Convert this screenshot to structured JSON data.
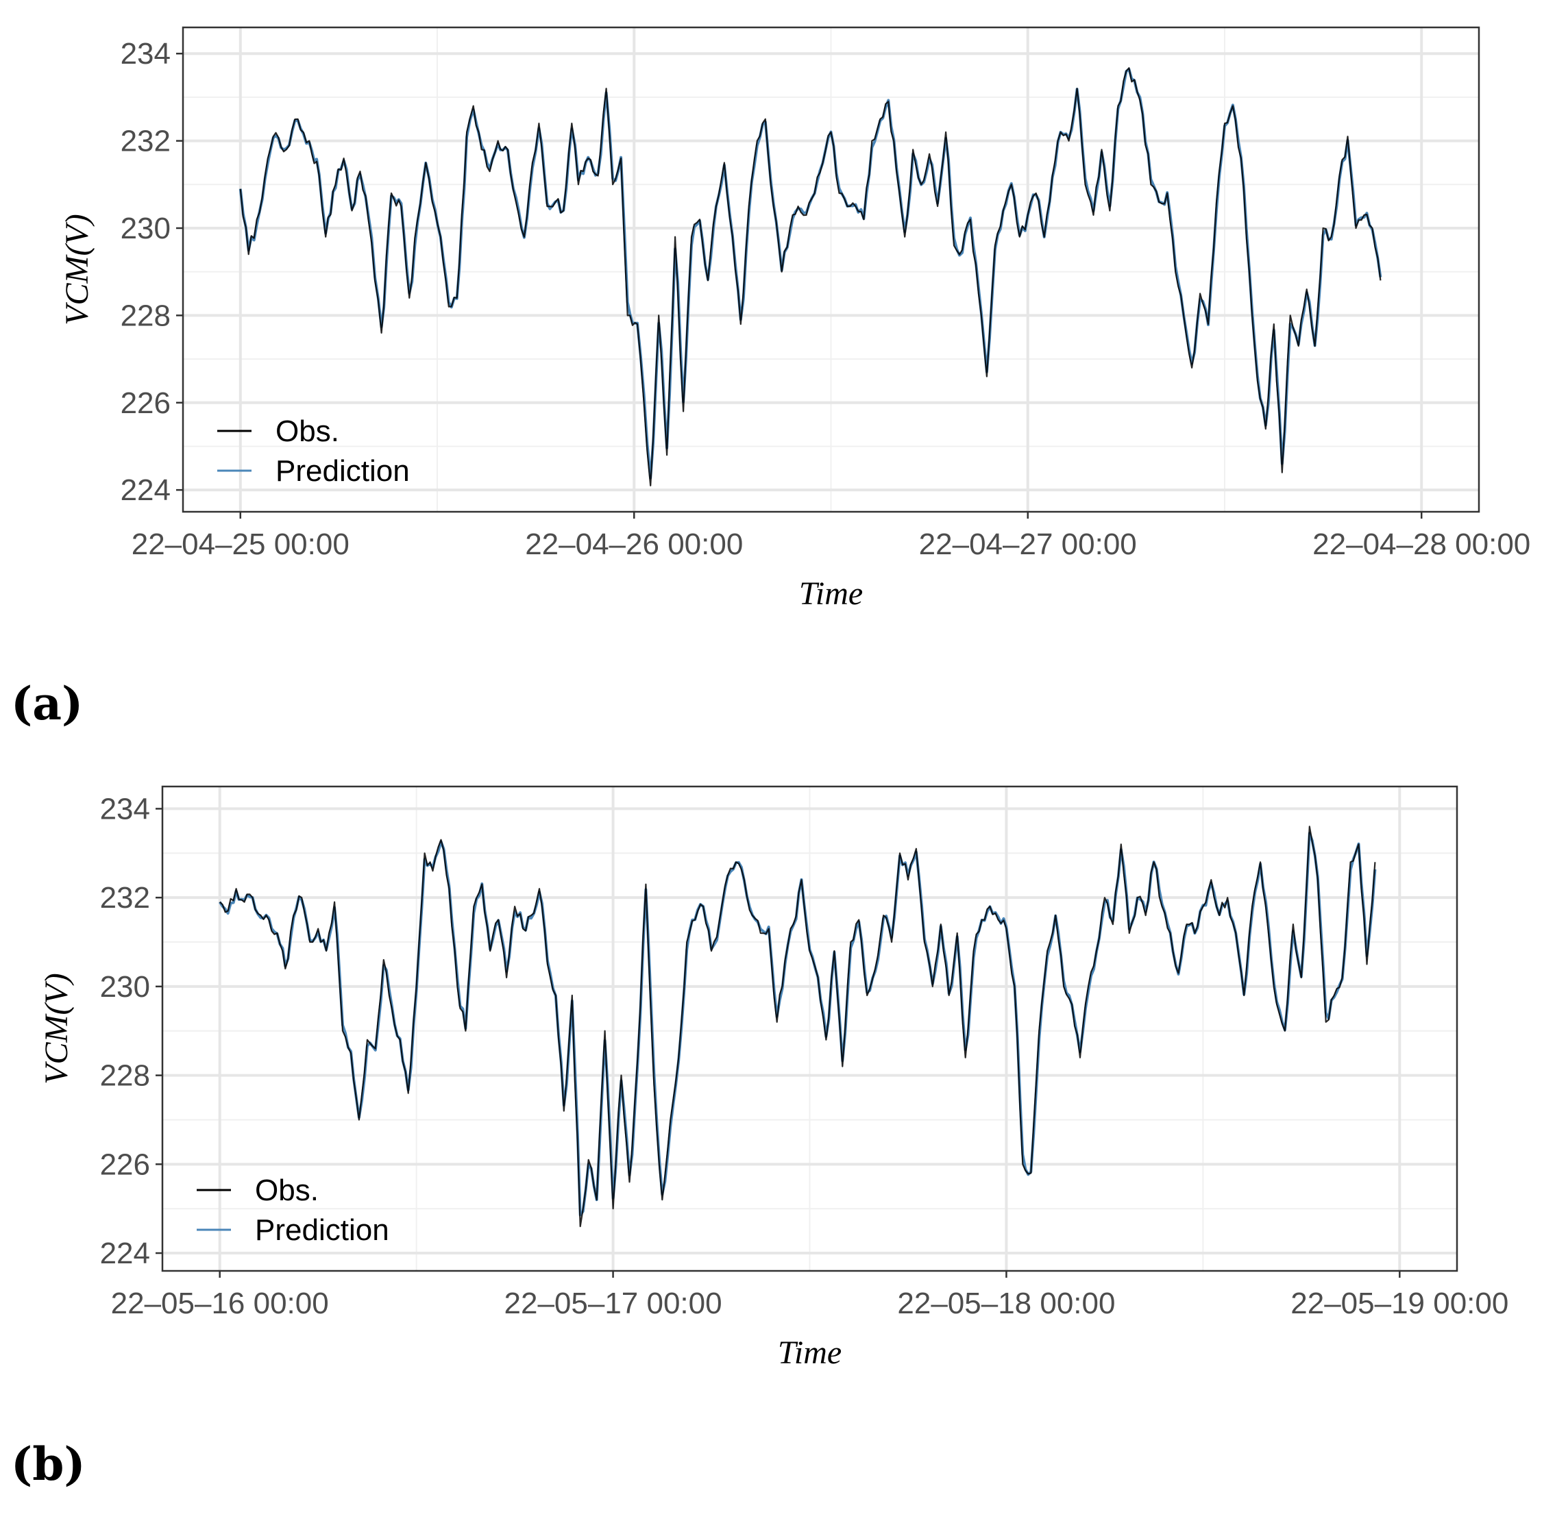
{
  "panels": [
    {
      "label": "(a)",
      "chart_data": {
        "type": "line",
        "title": "",
        "xlabel": "Time",
        "ylabel": "VCM(V)",
        "ylim": [
          223.5,
          234.6
        ],
        "yticks": [
          224,
          226,
          228,
          230,
          232,
          234
        ],
        "xlim_hours": [
          -3.5,
          75.5
        ],
        "xticks": [
          {
            "hour": 0,
            "label": "22–04–25 00:00"
          },
          {
            "hour": 24,
            "label": "22–04–26 00:00"
          },
          {
            "hour": 48,
            "label": "22–04–27 00:00"
          },
          {
            "hour": 72,
            "label": "22–04–28 00:00"
          }
        ],
        "legend": {
          "position": "bottom-left",
          "entries": [
            "Obs.",
            "Prediction"
          ]
        },
        "grid": true,
        "series_colors": {
          "Obs.": "#000000",
          "Prediction": "#4a86b8"
        },
        "key_points": [
          [
            0,
            230.9
          ],
          [
            0.5,
            229.4
          ],
          [
            1,
            230.2
          ],
          [
            1.5,
            231.2
          ],
          [
            2,
            232.1
          ],
          [
            2.8,
            231.8
          ],
          [
            3.5,
            232.5
          ],
          [
            4.2,
            232.0
          ],
          [
            4.8,
            231.2
          ],
          [
            5.2,
            229.8
          ],
          [
            5.8,
            231.0
          ],
          [
            6.3,
            231.6
          ],
          [
            6.8,
            230.4
          ],
          [
            7.3,
            231.3
          ],
          [
            7.8,
            230.2
          ],
          [
            8.2,
            228.8
          ],
          [
            8.6,
            227.6
          ],
          [
            9.2,
            230.8
          ],
          [
            9.8,
            230.5
          ],
          [
            10.3,
            228.4
          ],
          [
            10.8,
            230.2
          ],
          [
            11.3,
            231.5
          ],
          [
            11.7,
            230.6
          ],
          [
            12.2,
            229.8
          ],
          [
            12.7,
            228.2
          ],
          [
            13.2,
            228.4
          ],
          [
            13.8,
            232.2
          ],
          [
            14.2,
            232.8
          ],
          [
            14.7,
            231.8
          ],
          [
            15.2,
            231.3
          ],
          [
            15.7,
            232.0
          ],
          [
            16.3,
            231.8
          ],
          [
            16.8,
            230.6
          ],
          [
            17.3,
            229.8
          ],
          [
            17.8,
            231.5
          ],
          [
            18.2,
            232.4
          ],
          [
            18.7,
            230.5
          ],
          [
            19.2,
            230.6
          ],
          [
            19.7,
            230.4
          ],
          [
            20.2,
            232.4
          ],
          [
            20.6,
            231.0
          ],
          [
            21.2,
            231.6
          ],
          [
            21.8,
            231.2
          ],
          [
            22.3,
            233.2
          ],
          [
            22.7,
            231.0
          ],
          [
            23.2,
            231.6
          ],
          [
            23.6,
            228.0
          ],
          [
            24.2,
            227.8
          ],
          [
            24.6,
            226.0
          ],
          [
            25.0,
            224.1
          ],
          [
            25.5,
            228.0
          ],
          [
            26.0,
            224.8
          ],
          [
            26.5,
            229.8
          ],
          [
            27.0,
            225.8
          ],
          [
            27.5,
            229.8
          ],
          [
            28.0,
            230.2
          ],
          [
            28.5,
            228.8
          ],
          [
            29.0,
            230.5
          ],
          [
            29.5,
            231.5
          ],
          [
            30.0,
            229.8
          ],
          [
            30.5,
            227.8
          ],
          [
            31.0,
            230.5
          ],
          [
            31.5,
            232.0
          ],
          [
            32.0,
            232.5
          ],
          [
            32.5,
            230.5
          ],
          [
            33.0,
            229.0
          ],
          [
            33.5,
            230.0
          ],
          [
            34.0,
            230.5
          ],
          [
            34.5,
            230.3
          ],
          [
            35.0,
            230.8
          ],
          [
            35.5,
            231.5
          ],
          [
            36.0,
            232.2
          ],
          [
            36.5,
            230.8
          ],
          [
            37.0,
            230.5
          ],
          [
            37.5,
            230.5
          ],
          [
            38.0,
            230.2
          ],
          [
            38.5,
            232.0
          ],
          [
            39.0,
            232.5
          ],
          [
            39.5,
            232.9
          ],
          [
            40.0,
            231.3
          ],
          [
            40.5,
            229.8
          ],
          [
            41.0,
            231.8
          ],
          [
            41.5,
            231.0
          ],
          [
            42.0,
            231.7
          ],
          [
            42.5,
            230.5
          ],
          [
            43.0,
            232.2
          ],
          [
            43.5,
            229.6
          ],
          [
            44.0,
            229.5
          ],
          [
            44.5,
            230.2
          ],
          [
            45.0,
            228.5
          ],
          [
            45.5,
            226.6
          ],
          [
            46.0,
            229.6
          ],
          [
            46.5,
            230.4
          ],
          [
            47.0,
            231.0
          ],
          [
            47.5,
            229.8
          ],
          [
            48.0,
            230.3
          ],
          [
            48.5,
            230.8
          ],
          [
            49.0,
            229.8
          ],
          [
            49.5,
            231.2
          ],
          [
            50.0,
            232.2
          ],
          [
            50.5,
            232.0
          ],
          [
            51.0,
            233.2
          ],
          [
            51.5,
            231.0
          ],
          [
            52.0,
            230.3
          ],
          [
            52.5,
            231.8
          ],
          [
            53.0,
            230.4
          ],
          [
            53.5,
            232.8
          ],
          [
            54.0,
            233.6
          ],
          [
            54.5,
            233.4
          ],
          [
            55.0,
            232.6
          ],
          [
            55.5,
            231.0
          ],
          [
            56.0,
            230.6
          ],
          [
            56.5,
            230.8
          ],
          [
            57.0,
            229.0
          ],
          [
            57.5,
            228.0
          ],
          [
            58.0,
            226.8
          ],
          [
            58.5,
            228.5
          ],
          [
            59.0,
            227.8
          ],
          [
            59.5,
            230.6
          ],
          [
            60.0,
            232.4
          ],
          [
            60.5,
            232.8
          ],
          [
            61.0,
            231.6
          ],
          [
            61.5,
            229.0
          ],
          [
            62.0,
            226.5
          ],
          [
            62.5,
            225.4
          ],
          [
            63.0,
            227.8
          ],
          [
            63.5,
            224.4
          ],
          [
            64.0,
            228.0
          ],
          [
            64.5,
            227.3
          ],
          [
            65.0,
            228.6
          ],
          [
            65.5,
            227.3
          ],
          [
            66.0,
            230.0
          ],
          [
            66.5,
            229.8
          ],
          [
            67.0,
            231.2
          ],
          [
            67.5,
            232.1
          ],
          [
            68.0,
            230.0
          ],
          [
            68.5,
            230.3
          ],
          [
            69.0,
            230.0
          ],
          [
            69.5,
            228.8
          ]
        ]
      }
    },
    {
      "label": "(b)",
      "chart_data": {
        "type": "line",
        "title": "",
        "xlabel": "Time",
        "ylabel": "VCM(V)",
        "ylim": [
          223.6,
          234.5
        ],
        "yticks": [
          224,
          226,
          228,
          230,
          232,
          234
        ],
        "xlim_hours": [
          -3.5,
          75.5
        ],
        "xticks": [
          {
            "hour": 0,
            "label": "22–05–16 00:00"
          },
          {
            "hour": 24,
            "label": "22–05–17 00:00"
          },
          {
            "hour": 48,
            "label": "22–05–18 00:00"
          },
          {
            "hour": 72,
            "label": "22–05–19 00:00"
          }
        ],
        "legend": {
          "position": "bottom-left",
          "entries": [
            "Obs.",
            "Prediction"
          ]
        },
        "grid": true,
        "series_colors": {
          "Obs.": "#000000",
          "Prediction": "#4a86b8"
        },
        "key_points": [
          [
            0,
            231.9
          ],
          [
            0.5,
            231.7
          ],
          [
            1,
            232.2
          ],
          [
            1.5,
            231.9
          ],
          [
            2,
            232.0
          ],
          [
            2.5,
            231.6
          ],
          [
            3,
            231.5
          ],
          [
            3.5,
            231.2
          ],
          [
            4,
            230.4
          ],
          [
            4.5,
            231.6
          ],
          [
            5,
            232.0
          ],
          [
            5.5,
            231.0
          ],
          [
            6,
            231.3
          ],
          [
            6.5,
            230.8
          ],
          [
            7,
            231.9
          ],
          [
            7.5,
            229.0
          ],
          [
            8,
            228.5
          ],
          [
            8.5,
            227.0
          ],
          [
            9,
            228.8
          ],
          [
            9.5,
            228.6
          ],
          [
            10,
            230.6
          ],
          [
            10.5,
            229.5
          ],
          [
            11,
            228.8
          ],
          [
            11.5,
            227.6
          ],
          [
            12,
            230.0
          ],
          [
            12.5,
            233.0
          ],
          [
            13,
            232.6
          ],
          [
            13.5,
            233.3
          ],
          [
            14,
            232.2
          ],
          [
            14.5,
            230.0
          ],
          [
            15,
            229.0
          ],
          [
            15.5,
            231.8
          ],
          [
            16,
            232.3
          ],
          [
            16.5,
            230.8
          ],
          [
            17,
            231.5
          ],
          [
            17.5,
            230.2
          ],
          [
            18,
            231.8
          ],
          [
            18.5,
            231.3
          ],
          [
            19,
            231.6
          ],
          [
            19.5,
            232.2
          ],
          [
            20,
            230.5
          ],
          [
            20.5,
            229.8
          ],
          [
            21,
            227.2
          ],
          [
            21.5,
            229.8
          ],
          [
            22,
            224.6
          ],
          [
            22.5,
            226.1
          ],
          [
            23,
            225.2
          ],
          [
            23.5,
            229.0
          ],
          [
            24,
            225.0
          ],
          [
            24.5,
            228.0
          ],
          [
            25,
            225.6
          ],
          [
            25.5,
            228.4
          ],
          [
            26,
            232.3
          ],
          [
            26.5,
            227.8
          ],
          [
            27,
            225.2
          ],
          [
            27.5,
            227.0
          ],
          [
            28,
            228.4
          ],
          [
            28.5,
            231.0
          ],
          [
            29,
            231.5
          ],
          [
            29.5,
            231.8
          ],
          [
            30,
            230.8
          ],
          [
            30.5,
            231.5
          ],
          [
            31,
            232.5
          ],
          [
            31.5,
            232.8
          ],
          [
            32,
            232.4
          ],
          [
            32.5,
            231.6
          ],
          [
            33,
            231.2
          ],
          [
            33.5,
            231.3
          ],
          [
            34,
            229.2
          ],
          [
            34.5,
            230.6
          ],
          [
            35,
            231.4
          ],
          [
            35.5,
            232.4
          ],
          [
            36,
            230.8
          ],
          [
            36.5,
            230.2
          ],
          [
            37,
            228.8
          ],
          [
            37.5,
            230.8
          ],
          [
            38,
            228.2
          ],
          [
            38.5,
            231.0
          ],
          [
            39,
            231.5
          ],
          [
            39.5,
            229.8
          ],
          [
            40,
            230.4
          ],
          [
            40.5,
            231.6
          ],
          [
            41,
            231.0
          ],
          [
            41.5,
            233.0
          ],
          [
            42,
            232.4
          ],
          [
            42.5,
            233.1
          ],
          [
            43,
            231.0
          ],
          [
            43.5,
            230.0
          ],
          [
            44,
            231.4
          ],
          [
            44.5,
            229.8
          ],
          [
            45,
            231.2
          ],
          [
            45.5,
            228.4
          ],
          [
            46,
            230.8
          ],
          [
            46.5,
            231.5
          ],
          [
            47,
            231.8
          ],
          [
            47.5,
            231.5
          ],
          [
            48,
            231.3
          ],
          [
            48.5,
            230.0
          ],
          [
            49,
            226.0
          ],
          [
            49.5,
            225.8
          ],
          [
            50,
            229.0
          ],
          [
            50.5,
            230.8
          ],
          [
            51,
            231.6
          ],
          [
            51.5,
            230.0
          ],
          [
            52,
            229.6
          ],
          [
            52.5,
            228.4
          ],
          [
            53,
            230.0
          ],
          [
            53.5,
            230.8
          ],
          [
            54,
            232.0
          ],
          [
            54.5,
            231.4
          ],
          [
            55,
            233.2
          ],
          [
            55.5,
            231.2
          ],
          [
            56,
            232.0
          ],
          [
            56.5,
            231.6
          ],
          [
            57,
            232.8
          ],
          [
            57.5,
            231.8
          ],
          [
            58,
            231.2
          ],
          [
            58.5,
            230.3
          ],
          [
            59,
            231.4
          ],
          [
            59.5,
            231.2
          ],
          [
            60,
            231.8
          ],
          [
            60.5,
            232.4
          ],
          [
            61,
            231.6
          ],
          [
            61.5,
            232.0
          ],
          [
            62,
            231.2
          ],
          [
            62.5,
            229.8
          ],
          [
            63,
            231.8
          ],
          [
            63.5,
            232.8
          ],
          [
            64,
            231.2
          ],
          [
            64.5,
            229.6
          ],
          [
            65,
            229.0
          ],
          [
            65.5,
            231.4
          ],
          [
            66,
            230.2
          ],
          [
            66.5,
            233.6
          ],
          [
            67,
            232.4
          ],
          [
            67.5,
            229.2
          ],
          [
            68,
            229.8
          ],
          [
            68.5,
            230.2
          ],
          [
            69,
            232.8
          ],
          [
            69.5,
            233.2
          ],
          [
            70,
            230.5
          ],
          [
            70.5,
            232.8
          ]
        ]
      }
    }
  ]
}
